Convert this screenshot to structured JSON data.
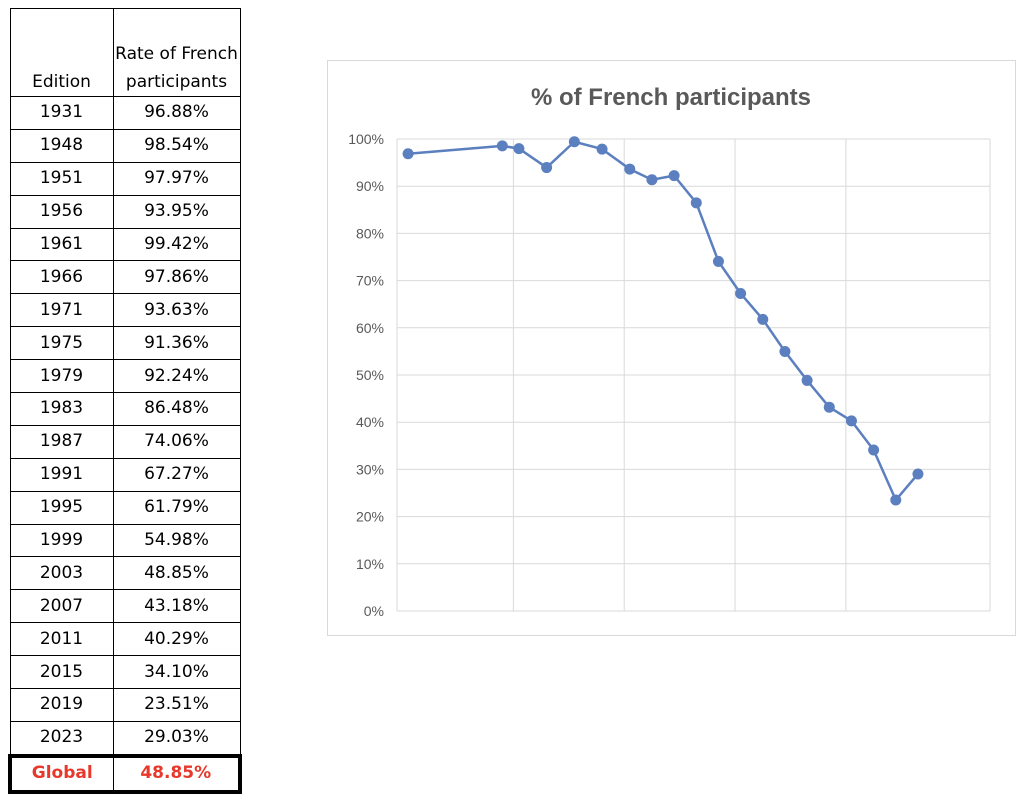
{
  "table": {
    "header": {
      "edition": "Edition",
      "rate": "Rate of French participants"
    },
    "rows": [
      {
        "edition": "1931",
        "rate": "96.88%"
      },
      {
        "edition": "1948",
        "rate": "98.54%"
      },
      {
        "edition": "1951",
        "rate": "97.97%"
      },
      {
        "edition": "1956",
        "rate": "93.95%"
      },
      {
        "edition": "1961",
        "rate": "99.42%"
      },
      {
        "edition": "1966",
        "rate": "97.86%"
      },
      {
        "edition": "1971",
        "rate": "93.63%"
      },
      {
        "edition": "1975",
        "rate": "91.36%"
      },
      {
        "edition": "1979",
        "rate": "92.24%"
      },
      {
        "edition": "1983",
        "rate": "86.48%"
      },
      {
        "edition": "1987",
        "rate": "74.06%"
      },
      {
        "edition": "1991",
        "rate": "67.27%"
      },
      {
        "edition": "1995",
        "rate": "61.79%"
      },
      {
        "edition": "1999",
        "rate": "54.98%"
      },
      {
        "edition": "2003",
        "rate": "48.85%"
      },
      {
        "edition": "2007",
        "rate": "43.18%"
      },
      {
        "edition": "2011",
        "rate": "40.29%"
      },
      {
        "edition": "2015",
        "rate": "34.10%"
      },
      {
        "edition": "2019",
        "rate": "23.51%"
      },
      {
        "edition": "2023",
        "rate": "29.03%"
      }
    ],
    "global": {
      "label": "Global",
      "rate": "48.85%"
    },
    "global_color": "#e8382b"
  },
  "chart_data": {
    "type": "line",
    "title": "% of French participants",
    "x": [
      1931,
      1948,
      1951,
      1956,
      1961,
      1966,
      1971,
      1975,
      1979,
      1983,
      1987,
      1991,
      1995,
      1999,
      2003,
      2007,
      2011,
      2015,
      2019,
      2023
    ],
    "series": [
      {
        "values": [
          96.88,
          98.54,
          97.97,
          93.95,
          99.42,
          97.86,
          93.63,
          91.36,
          92.24,
          86.48,
          74.06,
          67.27,
          61.79,
          54.98,
          48.85,
          43.18,
          40.29,
          34.1,
          23.51,
          29.03
        ],
        "color": "#5b7fbf"
      }
    ],
    "xlim": [
      1929,
      2036
    ],
    "ylim": [
      0,
      100
    ],
    "y_ticks": [
      "0%",
      "10%",
      "20%",
      "30%",
      "40%",
      "50%",
      "60%",
      "70%",
      "80%",
      "90%",
      "100%"
    ],
    "y_tick_values": [
      0,
      10,
      20,
      30,
      40,
      50,
      60,
      70,
      80,
      90,
      100
    ],
    "x_gridlines": [
      1950,
      1970,
      1990,
      2010
    ],
    "grid": true,
    "legend": "none",
    "gridline_color": "#d9d9d9"
  }
}
